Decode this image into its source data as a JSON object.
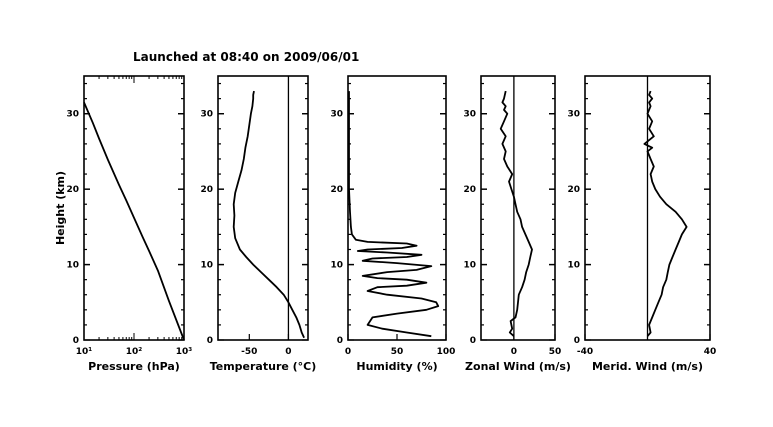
{
  "title": "Launched at 08:40 on 2009/06/01",
  "ylabel": "Height (km)",
  "y_ticks": [
    "0",
    "10",
    "20",
    "30"
  ],
  "chart_data": [
    {
      "type": "line",
      "xlabel": "Pressure (hPa)",
      "x_scale": "log",
      "xlim": [
        10,
        1000
      ],
      "x_tick_labels": [
        "10¹",
        "10²",
        "10³"
      ],
      "ylim": [
        0,
        35
      ],
      "series": [
        {
          "x": [
            1000,
            500,
            300,
            200,
            150,
            100,
            70,
            50,
            30,
            20,
            15,
            10
          ],
          "y": [
            0,
            5.2,
            9.2,
            11.8,
            13.6,
            16.2,
            18.5,
            20.6,
            23.9,
            26.7,
            28.8,
            31.5
          ]
        }
      ]
    },
    {
      "type": "line",
      "xlabel": "Temperature (°C)",
      "xlim": [
        -90,
        25
      ],
      "x_tick_labels": [
        "-50",
        "0"
      ],
      "x_tick_values": [
        -50,
        0
      ],
      "ylim": [
        0,
        35
      ],
      "series": [
        {
          "x": [
            20,
            17,
            14,
            10,
            5,
            0,
            -6,
            -15,
            -25,
            -35,
            -45,
            -54,
            -62,
            -68,
            -70,
            -69,
            -70,
            -68,
            -64,
            -60,
            -57,
            -55,
            -52,
            -50,
            -48,
            -46,
            -45,
            -45,
            -44
          ],
          "y": [
            0.3,
            1,
            2,
            3,
            4,
            5,
            6,
            7,
            8,
            9,
            10,
            11,
            12,
            13.5,
            15,
            16.5,
            18,
            19.5,
            21,
            22.5,
            24,
            25.5,
            27,
            28.5,
            30,
            31,
            32,
            32.5,
            33
          ]
        }
      ]
    },
    {
      "type": "line",
      "xlabel": "Humidity (%)",
      "xlim": [
        0,
        100
      ],
      "x_tick_labels": [
        "0",
        "50",
        "100"
      ],
      "x_tick_values": [
        0,
        50,
        100
      ],
      "ylim": [
        0,
        35
      ],
      "series": [
        {
          "x": [
            85,
            60,
            35,
            20,
            25,
            50,
            80,
            92,
            90,
            75,
            40,
            20,
            30,
            60,
            80,
            60,
            30,
            15,
            40,
            70,
            85,
            50,
            15,
            25,
            60,
            75,
            40,
            10,
            20,
            55,
            70,
            60,
            20,
            8,
            4,
            3,
            2,
            1,
            1,
            1
          ],
          "y": [
            0.5,
            1,
            1.5,
            2,
            3,
            3.5,
            4,
            4.5,
            5,
            5.5,
            6,
            6.5,
            7,
            7.2,
            7.6,
            8,
            8.2,
            8.5,
            9,
            9.3,
            9.8,
            10.2,
            10.5,
            10.8,
            11,
            11.3,
            11.6,
            11.8,
            12,
            12.2,
            12.5,
            12.8,
            13,
            13.3,
            14,
            15,
            17,
            20,
            25,
            33
          ]
        }
      ]
    },
    {
      "type": "line",
      "xlabel": "Zonal Wind (m/s)",
      "xlim": [
        -40,
        50
      ],
      "x_tick_labels": [
        "0",
        "50"
      ],
      "x_tick_values": [
        0,
        50
      ],
      "ylim": [
        0,
        35
      ],
      "series": [
        {
          "x": [
            0,
            -5,
            -2,
            -4,
            2,
            4,
            5,
            6,
            10,
            13,
            15,
            18,
            20,
            22,
            18,
            14,
            10,
            8,
            4,
            2,
            0,
            -3,
            -6,
            -2,
            -8,
            -12,
            -10,
            -14,
            -10,
            -16,
            -12,
            -8,
            -12,
            -10,
            -14,
            -12,
            -10
          ],
          "y": [
            0.5,
            1,
            1.5,
            2.5,
            3,
            4,
            5,
            6,
            7,
            8,
            9,
            10,
            11,
            12,
            13,
            14,
            15,
            16,
            17,
            18,
            19,
            20,
            21,
            22,
            23,
            24,
            25,
            26,
            27,
            28,
            29,
            30,
            30.5,
            31,
            31.5,
            32,
            33
          ]
        }
      ]
    },
    {
      "type": "line",
      "xlabel": "Merid. Wind (m/s)",
      "xlim": [
        -40,
        40
      ],
      "x_tick_labels": [
        "-40",
        "40"
      ],
      "x_tick_values": [
        -40,
        40
      ],
      "ylim": [
        0,
        35
      ],
      "series": [
        {
          "x": [
            0,
            2,
            1,
            3,
            5,
            7,
            9,
            10,
            12,
            13,
            14,
            16,
            18,
            20,
            22,
            25,
            22,
            18,
            12,
            8,
            5,
            3,
            2,
            4,
            2,
            0,
            3,
            -2,
            4,
            1,
            3,
            0,
            2,
            1,
            3,
            1,
            2
          ],
          "y": [
            0.5,
            1,
            2,
            3,
            4,
            5,
            6,
            7,
            8,
            9,
            10,
            11,
            12,
            13,
            14,
            15,
            16,
            17,
            18,
            19,
            20,
            21,
            22,
            23,
            24,
            25,
            25.5,
            26,
            27,
            28,
            29,
            30,
            31,
            31.5,
            32,
            32.5,
            33
          ]
        }
      ]
    }
  ]
}
